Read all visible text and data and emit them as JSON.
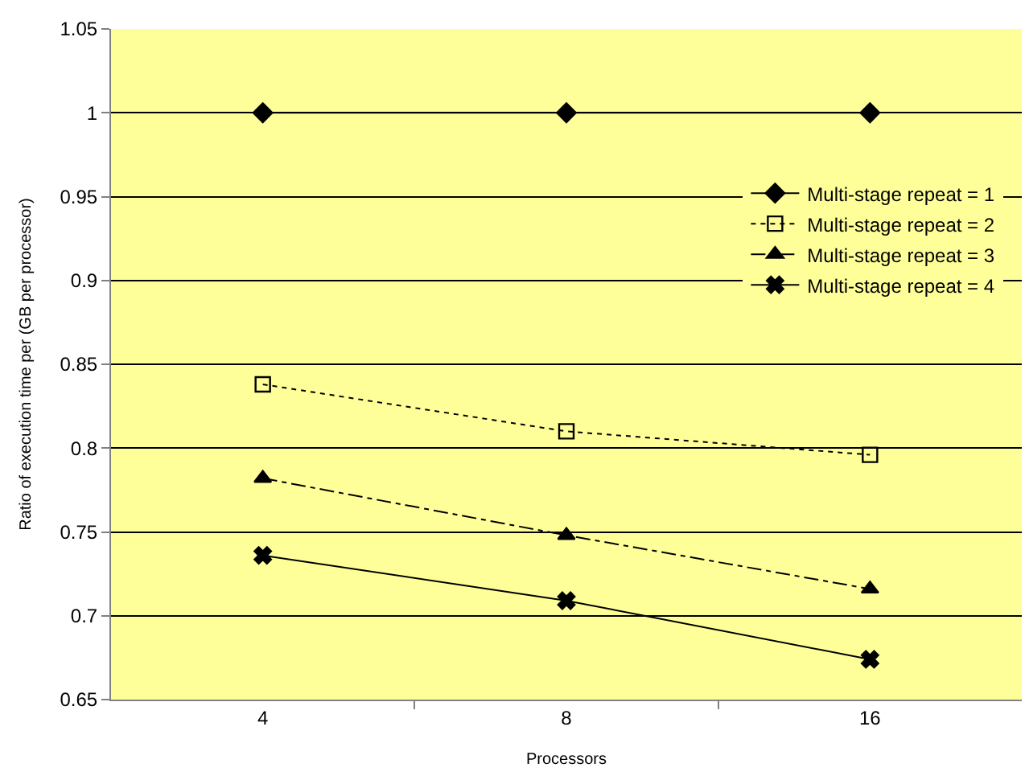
{
  "chart_data": {
    "type": "line",
    "xlabel": "Processors",
    "ylabel": "Ratio of execution time per (GB per processor)",
    "categories": [
      "4",
      "8",
      "16"
    ],
    "series": [
      {
        "name": "Multi-stage repeat = 1",
        "color": "#000000",
        "marker": "diamond",
        "line_style": "solid",
        "values": [
          1.0,
          1.0,
          1.0
        ]
      },
      {
        "name": "Multi-stage repeat = 2",
        "color": "#000000",
        "marker": "square",
        "line_style": "dotted",
        "values": [
          0.838,
          0.81,
          0.796
        ]
      },
      {
        "name": "Multi-stage repeat = 3",
        "color": "#000000",
        "marker": "triangle",
        "line_style": "dashed",
        "values": [
          0.782,
          0.748,
          0.716
        ]
      },
      {
        "name": "Multi-stage repeat = 4",
        "color": "#000000",
        "marker": "cross",
        "line_style": "solid",
        "values": [
          0.736,
          0.709,
          0.674
        ]
      }
    ],
    "ylim": [
      0.65,
      1.05
    ],
    "yticks": [
      0.65,
      0.7,
      0.75,
      0.8,
      0.85,
      0.9,
      0.95,
      1,
      1.05
    ],
    "grid": "y",
    "legend": "top right"
  }
}
